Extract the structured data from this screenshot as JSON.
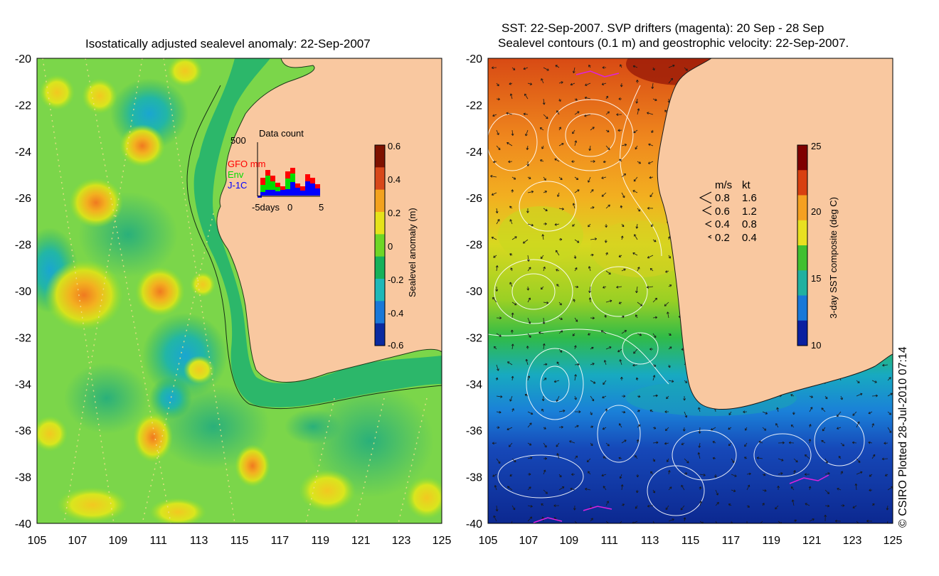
{
  "left_panel": {
    "title": "Isostatically adjusted sealevel anomaly: 22-Sep-2007",
    "colorbar": {
      "label": "Sealevel anomaly (m)",
      "ticks": [
        "0.6",
        "0.4",
        "0.2",
        "0",
        "-0.2",
        "-0.4",
        "-0.6"
      ],
      "colors": [
        "#7f1200",
        "#d8481a",
        "#f3a21e",
        "#e6e21a",
        "#6ed626",
        "#15b15a",
        "#1eb8b8",
        "#1a78d8",
        "#0a2aa0"
      ]
    },
    "inset": {
      "title": "Data count",
      "ymax_label": "500",
      "xaxis_label": "-5days",
      "tick_0": "0",
      "tick_5": "5",
      "legend": [
        {
          "label": "GFO mm",
          "color": "#ff0000"
        },
        {
          "label": "Env",
          "color": "#00dd00"
        },
        {
          "label": "J-1C",
          "color": "#0000ff"
        }
      ]
    }
  },
  "right_panel": {
    "title_line1": "SST: 22-Sep-2007. SVP drifters (magenta): 20 Sep - 28 Sep",
    "title_line2": "Sealevel contours (0.1 m) and geostrophic velocity: 22-Sep-2007.",
    "colorbar": {
      "label": "3-day SST composite (deg C)",
      "ticks": [
        "25",
        "20",
        "15",
        "10"
      ],
      "colors": [
        "#7f0000",
        "#d84010",
        "#f5a020",
        "#e8e020",
        "#40c030",
        "#20b0a0",
        "#1878d8",
        "#0a20a0"
      ]
    },
    "velocity_legend": {
      "header_ms": "m/s",
      "header_kt": "kt",
      "rows": [
        {
          "ms": "0.8",
          "kt": "1.6"
        },
        {
          "ms": "0.6",
          "kt": "1.2"
        },
        {
          "ms": "0.4",
          "kt": "0.8"
        },
        {
          "ms": "0.2",
          "kt": "0.4"
        }
      ]
    }
  },
  "axes": {
    "lat_labels": [
      "-20",
      "-22",
      "-24",
      "-26",
      "-28",
      "-30",
      "-32",
      "-34",
      "-36",
      "-38",
      "-40"
    ],
    "lon_labels": [
      "105",
      "107",
      "109",
      "111",
      "113",
      "115",
      "117",
      "119",
      "121",
      "123",
      "125"
    ]
  },
  "credit": "© CSIRO Plotted 28-Jul-2010 07:14",
  "colors": {
    "land": "#f9c8a0",
    "ocean_base": "#7bd64a"
  }
}
